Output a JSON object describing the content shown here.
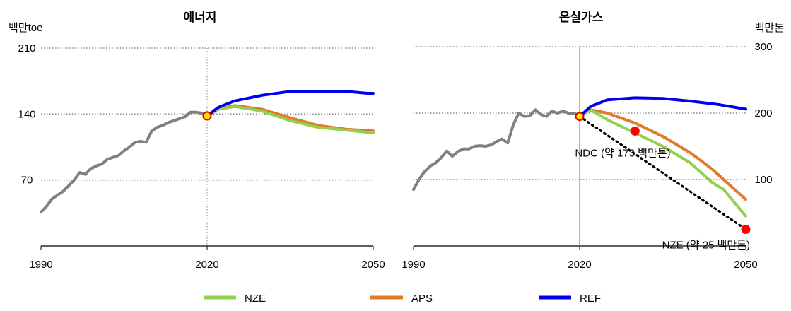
{
  "chart_data": [
    {
      "type": "line",
      "title": "에너지",
      "ylabel": "백만toe",
      "xlim": [
        1990,
        2050
      ],
      "ylim": [
        0,
        210
      ],
      "xticks": [
        "1990",
        "2020",
        "2050"
      ],
      "yticks": [
        "70",
        "140",
        "210"
      ],
      "grid": "horizontal dotted",
      "marker": {
        "x": 2020,
        "y": 138,
        "color": "#ffea00"
      },
      "series": [
        {
          "name": "History",
          "color": "#808080",
          "x": [
            1990,
            1991,
            1992,
            1993,
            1994,
            1995,
            1996,
            1997,
            1998,
            1999,
            2000,
            2001,
            2002,
            2003,
            2004,
            2005,
            2006,
            2007,
            2008,
            2009,
            2010,
            2011,
            2012,
            2013,
            2014,
            2015,
            2016,
            2017,
            2018,
            2019,
            2020
          ],
          "y": [
            36,
            42,
            50,
            54,
            58,
            64,
            70,
            78,
            76,
            82,
            85,
            87,
            92,
            94,
            96,
            101,
            105,
            110,
            111,
            110,
            122,
            126,
            128,
            131,
            133,
            135,
            137,
            142,
            142,
            141,
            138
          ]
        },
        {
          "name": "NZE",
          "color": "#92d050",
          "x": [
            2020,
            2022,
            2025,
            2030,
            2035,
            2040,
            2045,
            2050
          ],
          "y": [
            138,
            145,
            148,
            143,
            133,
            126,
            123,
            120
          ]
        },
        {
          "name": "APS",
          "color": "#e07b2a",
          "x": [
            2020,
            2022,
            2025,
            2030,
            2035,
            2040,
            2045,
            2050
          ],
          "y": [
            138,
            145,
            149,
            145,
            136,
            128,
            124,
            122
          ]
        },
        {
          "name": "REF",
          "color": "#0000ee",
          "x": [
            2020,
            2022,
            2025,
            2030,
            2035,
            2040,
            2045,
            2049,
            2050
          ],
          "y": [
            138,
            147,
            154,
            160,
            164,
            164,
            164,
            162,
            162
          ]
        }
      ]
    },
    {
      "type": "line",
      "title": "온실가스",
      "ylabel": "백만톤",
      "xlim": [
        1990,
        2050
      ],
      "ylim": [
        0,
        300
      ],
      "xticks": [
        "1990",
        "2020",
        "2050"
      ],
      "yticks": [
        "100",
        "200",
        "300"
      ],
      "grid": "horizontal dotted",
      "marker": {
        "x": 2020,
        "y": 195,
        "color": "#ffea00"
      },
      "series": [
        {
          "name": "History",
          "color": "#808080",
          "x": [
            1990,
            1991,
            1992,
            1993,
            1994,
            1995,
            1996,
            1997,
            1998,
            1999,
            2000,
            2001,
            2002,
            2003,
            2004,
            2005,
            2006,
            2007,
            2008,
            2009,
            2010,
            2011,
            2012,
            2013,
            2014,
            2015,
            2016,
            2017,
            2018,
            2019,
            2020
          ],
          "y": [
            85,
            100,
            112,
            120,
            125,
            133,
            143,
            135,
            142,
            146,
            146,
            150,
            151,
            150,
            152,
            157,
            161,
            155,
            182,
            200,
            195,
            196,
            205,
            198,
            195,
            203,
            200,
            203,
            200,
            200,
            195
          ]
        },
        {
          "name": "NZE",
          "color": "#92d050",
          "x": [
            2020,
            2022,
            2025,
            2030,
            2035,
            2040,
            2042,
            2044,
            2046,
            2048,
            2050
          ],
          "y": [
            195,
            205,
            190,
            170,
            150,
            125,
            110,
            95,
            85,
            65,
            45
          ]
        },
        {
          "name": "APS",
          "color": "#e07b2a",
          "x": [
            2020,
            2022,
            2025,
            2030,
            2035,
            2040,
            2042,
            2044,
            2046,
            2048,
            2050
          ],
          "y": [
            195,
            205,
            200,
            185,
            165,
            140,
            128,
            115,
            100,
            85,
            70
          ]
        },
        {
          "name": "REF",
          "color": "#0000ee",
          "x": [
            2020,
            2022,
            2025,
            2030,
            2035,
            2040,
            2045,
            2050
          ],
          "y": [
            195,
            210,
            220,
            223,
            222,
            218,
            213,
            206
          ]
        }
      ],
      "targets": [
        {
          "label": "NDC (약 173 백만톤)",
          "x": 2030,
          "y": 173,
          "color": "#ff0000"
        },
        {
          "label": "NZE (약 25 백만톤)",
          "x": 2050,
          "y": 25,
          "color": "#ff0000"
        }
      ],
      "pathway": {
        "from": [
          2020,
          195
        ],
        "to": [
          2050,
          25
        ],
        "style": "dotted black"
      }
    }
  ],
  "legend": {
    "placement": "bottom",
    "items": [
      {
        "label": "NZE",
        "color": "#92d050"
      },
      {
        "label": "APS",
        "color": "#e07b2a"
      },
      {
        "label": "REF",
        "color": "#0000ee"
      }
    ]
  }
}
